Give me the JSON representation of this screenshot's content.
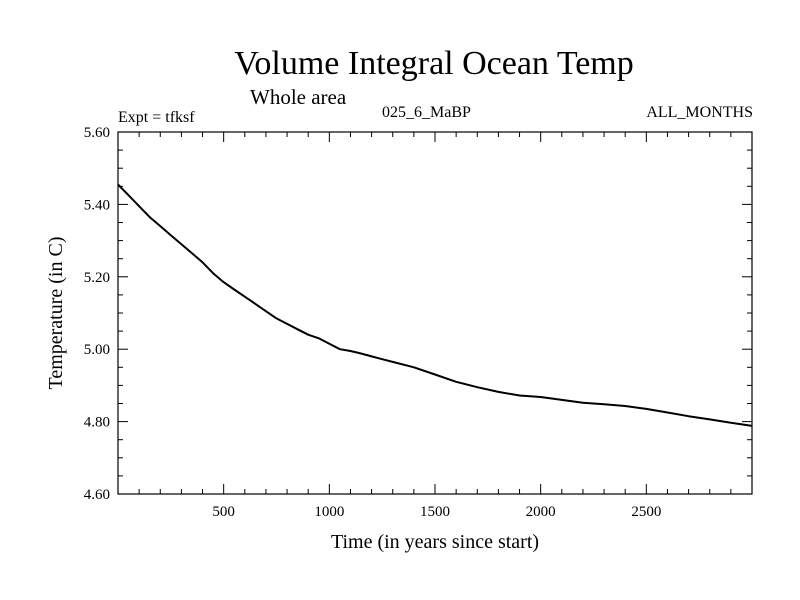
{
  "chart_data": {
    "type": "line",
    "title": "Volume Integral Ocean Temp",
    "subtitle": "Whole area",
    "experiment_label": "Expt = tfksf",
    "run_label": "025_6_MaBP",
    "period_label": "ALL_MONTHS",
    "xlabel": "Time (in years since start)",
    "ylabel": "Temperature (in C)",
    "xlim": [
      0,
      3000
    ],
    "ylim": [
      4.6,
      5.6
    ],
    "x_ticks": [
      {
        "value": 500,
        "label": "500"
      },
      {
        "value": 1000,
        "label": "1000"
      },
      {
        "value": 1500,
        "label": "1500"
      },
      {
        "value": 2000,
        "label": "2000"
      },
      {
        "value": 2500,
        "label": "2500"
      }
    ],
    "y_ticks": [
      {
        "value": 4.6,
        "label": "4.60"
      },
      {
        "value": 4.8,
        "label": "4.80"
      },
      {
        "value": 5.0,
        "label": "5.00"
      },
      {
        "value": 5.2,
        "label": "5.20"
      },
      {
        "value": 5.4,
        "label": "5.40"
      },
      {
        "value": 5.6,
        "label": "5.60"
      }
    ],
    "series": [
      {
        "name": "Volume Integral Ocean Temp",
        "color": "#000000",
        "x": [
          0,
          50,
          100,
          150,
          200,
          250,
          300,
          350,
          400,
          450,
          500,
          550,
          600,
          650,
          700,
          750,
          800,
          850,
          900,
          950,
          1000,
          1050,
          1100,
          1150,
          1200,
          1300,
          1400,
          1500,
          1600,
          1700,
          1800,
          1900,
          2000,
          2100,
          2200,
          2300,
          2400,
          2500,
          2600,
          2700,
          2800,
          2900,
          3000
        ],
        "y": [
          5.455,
          5.425,
          5.395,
          5.365,
          5.34,
          5.315,
          5.29,
          5.265,
          5.24,
          5.21,
          5.185,
          5.165,
          5.145,
          5.125,
          5.105,
          5.085,
          5.07,
          5.055,
          5.04,
          5.03,
          5.015,
          5.0,
          4.995,
          4.988,
          4.98,
          4.965,
          4.95,
          4.93,
          4.91,
          4.895,
          4.882,
          4.872,
          4.868,
          4.86,
          4.852,
          4.848,
          4.843,
          4.835,
          4.825,
          4.815,
          4.806,
          4.797,
          4.788
        ]
      }
    ]
  }
}
